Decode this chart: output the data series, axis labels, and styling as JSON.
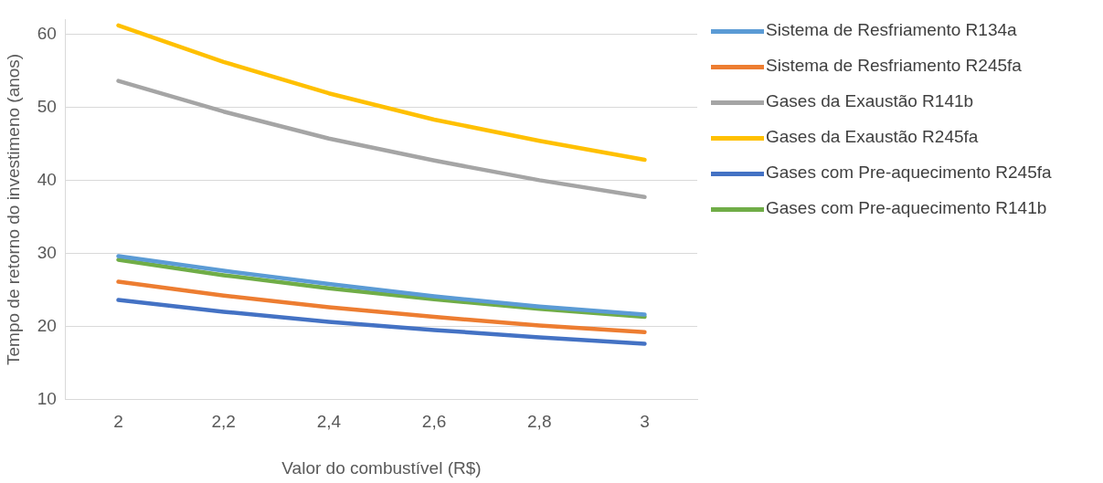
{
  "chart_data": {
    "type": "line",
    "xlabel": "Valor do combustível (R$)",
    "ylabel": "Tempo de retorno do investimeno (anos)",
    "categories": [
      "2",
      "2,2",
      "2,4",
      "2,6",
      "2,8",
      "3"
    ],
    "ylim": [
      10,
      62
    ],
    "yticks": [
      10,
      20,
      30,
      40,
      50,
      60
    ],
    "grid": "y",
    "legend": "right",
    "marker": "none",
    "line_style": "solid",
    "series": [
      {
        "name": "Sistema de Resfriamento R134a",
        "color": "#5b9bd5",
        "values": [
          29.6,
          27.6,
          25.8,
          24.1,
          22.7,
          21.6
        ]
      },
      {
        "name": "Sistema de Resfriamento R245fa",
        "color": "#ed7d31",
        "values": [
          26.1,
          24.2,
          22.6,
          21.3,
          20.1,
          19.2
        ]
      },
      {
        "name": "Gases da Exaustão R141b",
        "color": "#a5a5a5",
        "values": [
          53.6,
          49.4,
          45.7,
          42.7,
          40.0,
          37.7
        ]
      },
      {
        "name": "Gases da Exaustão R245fa",
        "color": "#ffc000",
        "values": [
          61.2,
          56.2,
          51.9,
          48.3,
          45.4,
          42.8
        ]
      },
      {
        "name": "Gases com Pre-aquecimento R245fa",
        "color": "#4472c4",
        "values": [
          23.6,
          22.0,
          20.6,
          19.5,
          18.5,
          17.6
        ]
      },
      {
        "name": "Gases com Pre-aquecimento R141b",
        "color": "#70ad47",
        "values": [
          29.1,
          27.0,
          25.2,
          23.7,
          22.4,
          21.3
        ]
      }
    ]
  }
}
